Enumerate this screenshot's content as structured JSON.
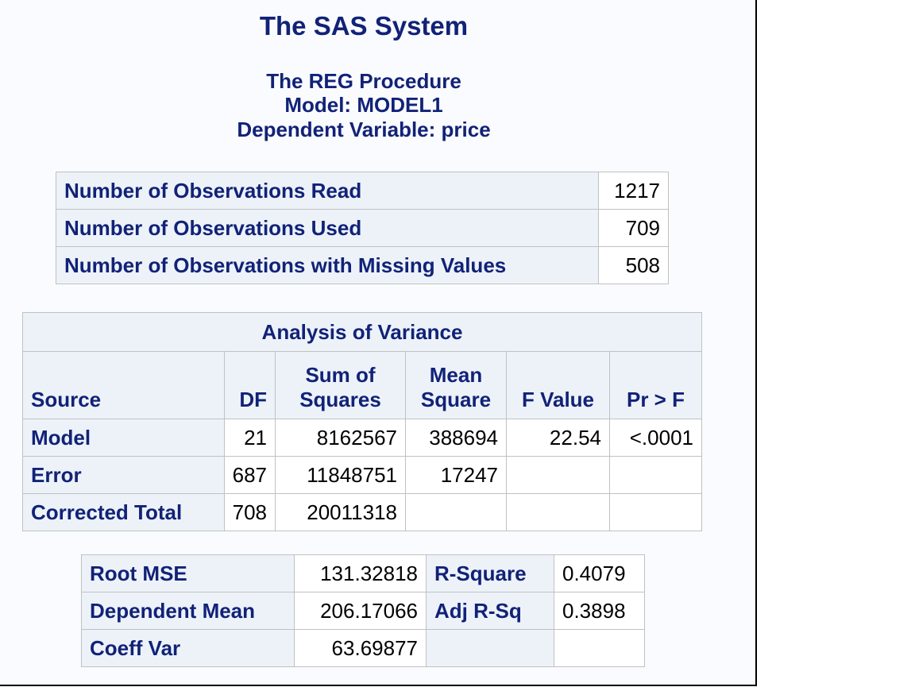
{
  "header": {
    "system_title": "The SAS System",
    "procedure": "The REG Procedure",
    "model": "Model: MODEL1",
    "dependent_variable": "Dependent Variable: price"
  },
  "observations": {
    "rows": [
      {
        "label": "Number of Observations Read",
        "value": "1217"
      },
      {
        "label": "Number of Observations Used",
        "value": "709"
      },
      {
        "label": "Number of Observations with Missing Values",
        "value": "508"
      }
    ]
  },
  "anova": {
    "title": "Analysis of Variance",
    "columns": {
      "source": "Source",
      "df": "DF",
      "ss_line1": "Sum of",
      "ss_line2": "Squares",
      "ms_line1": "Mean",
      "ms_line2": "Square",
      "f": "F Value",
      "p": "Pr > F"
    },
    "rows": [
      {
        "source": "Model",
        "df": "21",
        "ss": "8162567",
        "ms": "388694",
        "f": "22.54",
        "p": "<.0001"
      },
      {
        "source": "Error",
        "df": "687",
        "ss": "11848751",
        "ms": "17247",
        "f": "",
        "p": ""
      },
      {
        "source": "Corrected Total",
        "df": "708",
        "ss": "20011318",
        "ms": "",
        "f": "",
        "p": ""
      }
    ]
  },
  "fit": {
    "rows": [
      {
        "label1": "Root MSE",
        "value1": "131.32818",
        "label2": "R-Square",
        "value2": "0.4079"
      },
      {
        "label1": "Dependent Mean",
        "value1": "206.17066",
        "label2": "Adj R-Sq",
        "value2": "0.3898"
      },
      {
        "label1": "Coeff Var",
        "value1": "63.69877",
        "label2": "",
        "value2": ""
      }
    ]
  }
}
